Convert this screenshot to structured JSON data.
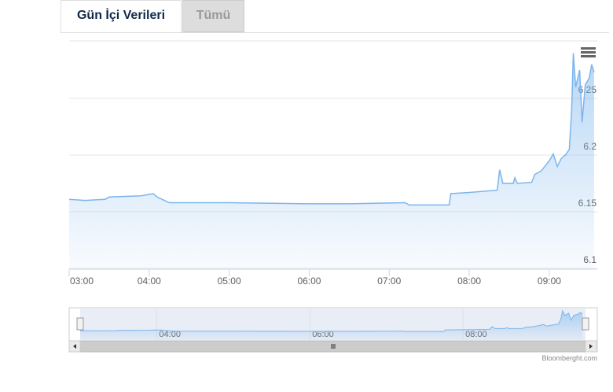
{
  "tabs": [
    "Gün İçi Verileri",
    "Tümü"
  ],
  "chart_data": {
    "type": "area",
    "x": [
      3.0,
      3.2,
      3.45,
      3.5,
      3.9,
      4.05,
      4.1,
      4.25,
      5.0,
      6.0,
      6.5,
      7.2,
      7.25,
      7.75,
      7.77,
      8.0,
      8.35,
      8.38,
      8.42,
      8.55,
      8.57,
      8.6,
      8.78,
      8.82,
      8.9,
      9.0,
      9.05,
      9.1,
      9.15,
      9.2,
      9.25,
      9.28,
      9.3,
      9.33,
      9.38,
      9.41,
      9.45,
      9.5,
      9.53,
      9.56
    ],
    "series": [
      {
        "color": "#7cb5ec",
        "values": [
          6.161,
          6.16,
          6.161,
          6.163,
          6.164,
          6.166,
          6.163,
          6.158,
          6.158,
          6.157,
          6.157,
          6.158,
          6.156,
          6.156,
          6.166,
          6.167,
          6.169,
          6.187,
          6.175,
          6.175,
          6.18,
          6.175,
          6.176,
          6.183,
          6.186,
          6.195,
          6.201,
          6.19,
          6.197,
          6.2,
          6.205,
          6.24,
          6.29,
          6.26,
          6.275,
          6.229,
          6.262,
          6.268,
          6.28,
          6.273
        ]
      }
    ],
    "xlim": [
      3.0,
      9.6
    ],
    "ylim": [
      6.1,
      6.3
    ],
    "xticks": [
      {
        "value": 3,
        "label": "03:00"
      },
      {
        "value": 4,
        "label": "04:00"
      },
      {
        "value": 5,
        "label": "05:00"
      },
      {
        "value": 6,
        "label": "06:00"
      },
      {
        "value": 7,
        "label": "07:00"
      },
      {
        "value": 8,
        "label": "08:00"
      },
      {
        "value": 9,
        "label": "09:00"
      }
    ],
    "yticks": [
      6.1,
      6.15,
      6.2,
      6.25
    ],
    "grid": true,
    "navigator_xticks": [
      {
        "value": 4,
        "label": "04:00"
      },
      {
        "value": 6,
        "label": "06:00"
      },
      {
        "value": 8,
        "label": "08:00"
      }
    ],
    "credit": "Bloomberght.com"
  }
}
